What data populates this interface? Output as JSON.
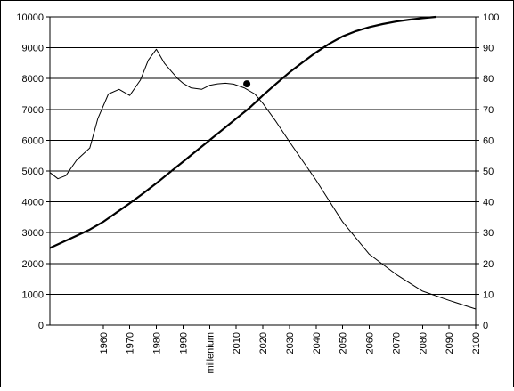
{
  "chart_data": {
    "type": "line",
    "title": "",
    "xlabel": "",
    "ylabel": "",
    "xlim": [
      1940,
      2100
    ],
    "ylim": [
      0,
      10000
    ],
    "ylim_right": [
      0,
      100
    ],
    "grid": true,
    "legend": "none",
    "x_ticks": [
      1960,
      1970,
      1980,
      1990,
      2000,
      2010,
      2020,
      2030,
      2040,
      2050,
      2060,
      2070,
      2080,
      2090,
      2100
    ],
    "x_tick_labels": [
      "1960",
      "1970",
      "1980",
      "1990",
      "millenium",
      "2010",
      "2020",
      "2030",
      "2040",
      "2050",
      "2060",
      "2070",
      "2080",
      "2090",
      "2100"
    ],
    "y_ticks_left": [
      0,
      1000,
      2000,
      3000,
      4000,
      5000,
      6000,
      7000,
      8000,
      9000,
      10000
    ],
    "y_tick_labels_left": [
      "0",
      "1000",
      "2000",
      "3000",
      "4000",
      "5000",
      "6000",
      "7000",
      "8000",
      "9000",
      "10000"
    ],
    "y_ticks_right": [
      0,
      10,
      20,
      30,
      40,
      50,
      60,
      70,
      80,
      90,
      100
    ],
    "y_tick_labels_right": [
      "0",
      "10",
      "20",
      "30",
      "40",
      "50",
      "60",
      "70",
      "80",
      "90",
      "100"
    ],
    "series": [
      {
        "axis": "left",
        "stroke_color": "#000000",
        "stroke_weight": "thin",
        "x": [
          1940,
          1943,
          1946,
          1950,
          1955,
          1958,
          1962,
          1966,
          1970,
          1974,
          1977,
          1980,
          1983,
          1986,
          1988,
          1990,
          1993,
          1997,
          2000,
          2003,
          2006,
          2009,
          2013,
          2017,
          2020,
          2025,
          2030,
          2040,
          2050,
          2060,
          2070,
          2080,
          2090,
          2100
        ],
        "y": [
          4950,
          4750,
          4850,
          5350,
          5750,
          6700,
          7500,
          7650,
          7450,
          7950,
          8600,
          8950,
          8500,
          8200,
          8000,
          7850,
          7700,
          7650,
          7780,
          7830,
          7850,
          7820,
          7700,
          7500,
          7200,
          6600,
          5950,
          4700,
          3350,
          2300,
          1650,
          1100,
          800,
          520
        ]
      },
      {
        "axis": "right",
        "stroke_color": "#000000",
        "stroke_weight": "thick",
        "x": [
          1940,
          1945,
          1950,
          1955,
          1960,
          1965,
          1970,
          1975,
          1980,
          1985,
          1990,
          1995,
          2000,
          2005,
          2010,
          2015,
          2020,
          2025,
          2030,
          2035,
          2040,
          2045,
          2050,
          2055,
          2060,
          2065,
          2070,
          2075,
          2080,
          2085
        ],
        "y": [
          25,
          27,
          29,
          31,
          33.5,
          36.5,
          39.5,
          42.7,
          46,
          49.5,
          53,
          56.5,
          60,
          63.5,
          67,
          70.5,
          74.5,
          78.3,
          82,
          85.3,
          88.5,
          91.3,
          93.7,
          95.4,
          96.7,
          97.7,
          98.5,
          99.1,
          99.6,
          100
        ]
      }
    ],
    "marker": {
      "series_index": 0,
      "x": 2014,
      "y": 7830,
      "shape": "filled-circle"
    }
  }
}
